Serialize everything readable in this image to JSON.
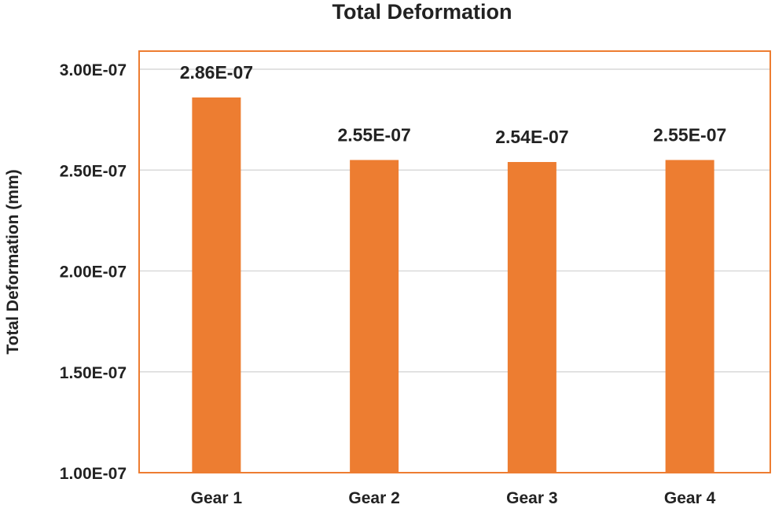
{
  "chart_data": {
    "type": "bar",
    "title": "Total Deformation",
    "xlabel": "",
    "ylabel": "Total Deformation (mm)",
    "categories": [
      "Gear 1",
      "Gear 2",
      "Gear 3",
      "Gear 4"
    ],
    "values": [
      2.86e-07,
      2.55e-07,
      2.54e-07,
      2.55e-07
    ],
    "data_labels": [
      "2.86E-07",
      "2.55E-07",
      "2.54E-07",
      "2.55E-07"
    ],
    "ylim": [
      1e-07,
      3e-07
    ],
    "yticks": [
      1e-07,
      1.5e-07,
      2e-07,
      2.5e-07,
      3e-07
    ],
    "ytick_labels": [
      "1.00E-07",
      "1.50E-07",
      "2.00E-07",
      "2.50E-07",
      "3.00E-07"
    ],
    "grid": true,
    "legend": "none",
    "colors": {
      "bar": "#ED7D31",
      "plot_border": "#ED7D31",
      "grid": "#D9D9D9"
    }
  }
}
